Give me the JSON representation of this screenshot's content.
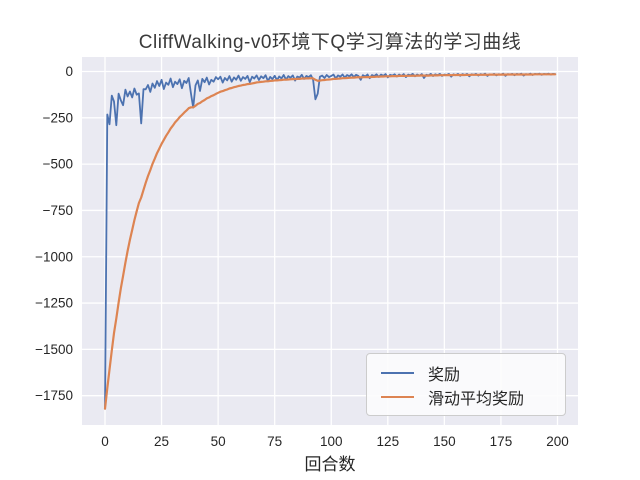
{
  "title": "CliffWalking-v0环境下Q学习算法的学习曲线",
  "axes": {
    "xlabel": "回合数",
    "x_tick_labels": [
      "0",
      "25",
      "50",
      "75",
      "100",
      "125",
      "150",
      "175",
      "200"
    ],
    "x_tick_values": [
      0,
      25,
      50,
      75,
      100,
      125,
      150,
      175,
      200
    ],
    "y_tick_labels": [
      "0",
      "−250",
      "−500",
      "−750",
      "−1000",
      "−1250",
      "−1500",
      "−1750"
    ],
    "y_tick_values": [
      0,
      -250,
      -500,
      -750,
      -1000,
      -1250,
      -1500,
      -1750
    ]
  },
  "legend": {
    "items": [
      {
        "label": "奖励",
        "color": "#4c72b0"
      },
      {
        "label": "滑动平均奖励",
        "color": "#dd8452"
      }
    ]
  },
  "colors": {
    "plot_background": "#eaeaf2",
    "grid": "#ffffff",
    "reward_line": "#4c72b0",
    "moving_avg_line": "#dd8452",
    "text": "#262626"
  },
  "chart_data": {
    "type": "line",
    "title": "CliffWalking-v0环境下Q学习算法的学习曲线",
    "xlabel": "回合数",
    "ylabel": "",
    "x_start": 0,
    "x_step": 1,
    "xlim": [
      -10,
      209
    ],
    "ylim": [
      -1910,
      78
    ],
    "grid": true,
    "legend_position": "lower right",
    "series": [
      {
        "name": "奖励",
        "color": "#4c72b0",
        "values": [
          -1820,
          -232,
          -285,
          -130,
          -162,
          -290,
          -120,
          -155,
          -182,
          -98,
          -135,
          -108,
          -140,
          -92,
          -125,
          -118,
          -280,
          -95,
          -96,
          -73,
          -110,
          -65,
          -88,
          -52,
          -78,
          -45,
          -95,
          -60,
          -72,
          -38,
          -85,
          -55,
          -68,
          -42,
          -90,
          -50,
          -62,
          -35,
          -120,
          -195,
          -75,
          -48,
          -105,
          -40,
          -58,
          -33,
          -70,
          -45,
          -55,
          -30,
          -42,
          -28,
          -60,
          -35,
          -48,
          -25,
          -55,
          -32,
          -44,
          -22,
          -50,
          -30,
          -40,
          -24,
          -58,
          -28,
          -38,
          -21,
          -46,
          -26,
          -36,
          -20,
          -52,
          -29,
          -41,
          -23,
          -47,
          -27,
          -37,
          -19,
          -44,
          -25,
          -34,
          -21,
          -49,
          -27,
          -33,
          -18,
          -40,
          -24,
          -31,
          -20,
          -45,
          -150,
          -120,
          -28,
          -22,
          -35,
          -19,
          -30,
          -24,
          -17,
          -38,
          -21,
          -28,
          -16,
          -33,
          -19,
          -26,
          -15,
          -30,
          -18,
          -24,
          -45,
          -20,
          -27,
          -16,
          -36,
          -19,
          -25,
          -15,
          -29,
          -17,
          -23,
          -14,
          -32,
          -18,
          -22,
          -15,
          -27,
          -16,
          -24,
          -14,
          -30,
          -17,
          -21,
          -13,
          -26,
          -16,
          -22,
          -14,
          -35,
          -18,
          -21,
          -13,
          -25,
          -15,
          -20,
          -13,
          -24,
          -16,
          -19,
          -13,
          -28,
          -15,
          -20,
          -13,
          -23,
          -14,
          -19,
          -13,
          -26,
          -15,
          -18,
          -13,
          -22,
          -14,
          -18,
          -12,
          -24,
          -15,
          -17,
          -13,
          -21,
          -14,
          -17,
          -12,
          -23,
          -14,
          -16,
          -13,
          -20,
          -13,
          -16,
          -12,
          -22,
          -14,
          -16,
          -12,
          -19,
          -13,
          -15,
          -12,
          -18,
          -13,
          -15,
          -12,
          -17,
          -13,
          -14
        ]
      },
      {
        "name": "滑动平均奖励",
        "color": "#dd8452",
        "values": [
          -1820,
          -1709,
          -1609,
          -1506,
          -1412,
          -1333,
          -1248,
          -1172,
          -1103,
          -1032,
          -969,
          -909,
          -855,
          -802,
          -754,
          -710,
          -680,
          -639,
          -601,
          -564,
          -532,
          -499,
          -470,
          -441,
          -416,
          -390,
          -369,
          -347,
          -328,
          -308,
          -292,
          -275,
          -261,
          -246,
          -235,
          -222,
          -211,
          -198,
          -193,
          -193,
          -185,
          -175,
          -170,
          -161,
          -154,
          -145,
          -140,
          -133,
          -128,
          -121,
          -115,
          -109,
          -106,
          -101,
          -97,
          -92,
          -89,
          -85,
          -82,
          -78,
          -76,
          -73,
          -71,
          -68,
          -67,
          -64,
          -62,
          -59,
          -58,
          -56,
          -55,
          -53,
          -53,
          -51,
          -50,
          -48,
          -48,
          -47,
          -46,
          -44,
          -44,
          -43,
          -42,
          -41,
          -41,
          -40,
          -40,
          -38,
          -38,
          -37,
          -37,
          -36,
          -37,
          -45,
          -50,
          -49,
          -47,
          -46,
          -44,
          -43,
          -42,
          -40,
          -40,
          -39,
          -38,
          -36,
          -36,
          -35,
          -34,
          -33,
          -33,
          -32,
          -31,
          -32,
          -31,
          -31,
          -30,
          -30,
          -29,
          -29,
          -28,
          -28,
          -27,
          -27,
          -26,
          -26,
          -26,
          -25,
          -25,
          -25,
          -24,
          -24,
          -23,
          -24,
          -23,
          -23,
          -22,
          -23,
          -22,
          -22,
          -21,
          -22,
          -22,
          -22,
          -21,
          -21,
          -21,
          -21,
          -20,
          -20,
          -20,
          -20,
          -19,
          -20,
          -19,
          -19,
          -19,
          -19,
          -19,
          -19,
          -18,
          -19,
          -18,
          -18,
          -18,
          -18,
          -18,
          -18,
          -17,
          -18,
          -17,
          -17,
          -17,
          -17,
          -17,
          -17,
          -16,
          -17,
          -16,
          -16,
          -16,
          -16,
          -16,
          -16,
          -16,
          -16,
          -16,
          -16,
          -16,
          -16,
          -15,
          -15,
          -15,
          -15,
          -15,
          -15,
          -15,
          -15,
          -15,
          -15
        ]
      }
    ]
  }
}
